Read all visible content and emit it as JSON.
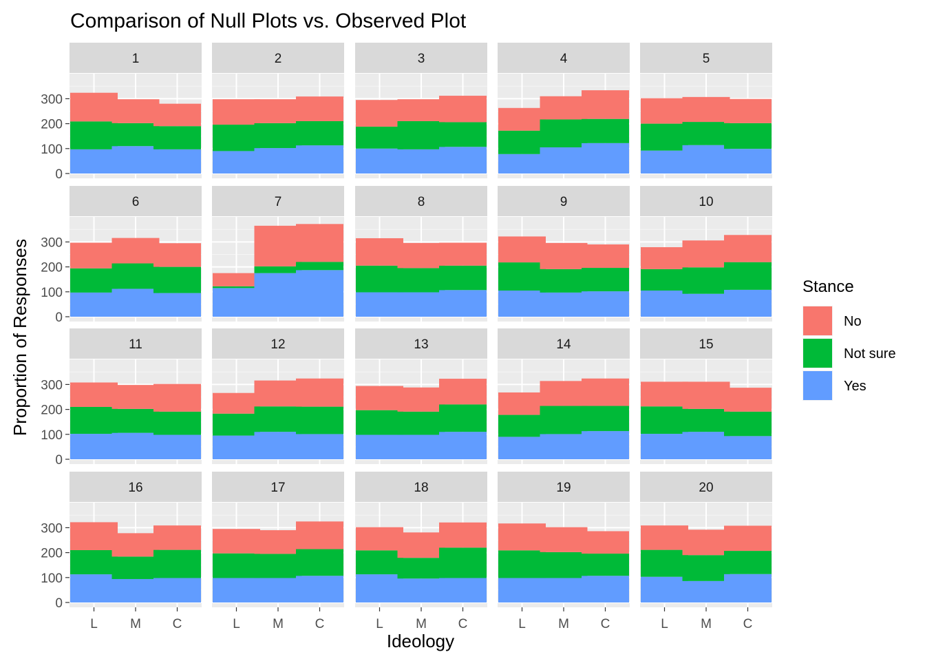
{
  "chart_data": {
    "type": "bar",
    "stacked": true,
    "title": "Comparison of Null Plots vs. Observed Plot",
    "xlabel": "Ideology",
    "ylabel": "Proportion of Responses",
    "categories": [
      "L",
      "M",
      "C"
    ],
    "ylim": [
      0,
      380
    ],
    "yticks": [
      0,
      100,
      200,
      300
    ],
    "grid": true,
    "legend": {
      "title": "Stance",
      "placement": "right",
      "entries": [
        {
          "name": "No",
          "color": "#F8766D"
        },
        {
          "name": "Not sure",
          "color": "#00BA38"
        },
        {
          "name": "Yes",
          "color": "#619CFF"
        }
      ]
    },
    "series_order": [
      "Yes",
      "Not sure",
      "No"
    ],
    "panels": [
      {
        "label": "1",
        "Yes": [
          97,
          110,
          97
        ],
        "Not sure": [
          112,
          92,
          93
        ],
        "No": [
          115,
          96,
          90
        ]
      },
      {
        "label": "2",
        "Yes": [
          90,
          102,
          113
        ],
        "Not sure": [
          106,
          100,
          97
        ],
        "No": [
          102,
          96,
          99
        ]
      },
      {
        "label": "3",
        "Yes": [
          100,
          97,
          107
        ],
        "Not sure": [
          88,
          113,
          99
        ],
        "No": [
          107,
          88,
          106
        ]
      },
      {
        "label": "4",
        "Yes": [
          78,
          105,
          122
        ],
        "Not sure": [
          94,
          112,
          97
        ],
        "No": [
          91,
          93,
          115
        ]
      },
      {
        "label": "5",
        "Yes": [
          92,
          114,
          99
        ],
        "Not sure": [
          108,
          93,
          103
        ],
        "No": [
          102,
          100,
          97
        ]
      },
      {
        "label": "6",
        "Yes": [
          97,
          112,
          95
        ],
        "Not sure": [
          97,
          102,
          105
        ],
        "No": [
          103,
          102,
          95
        ]
      },
      {
        "label": "7",
        "Yes": [
          115,
          175,
          187
        ],
        "Not sure": [
          7,
          27,
          33
        ],
        "No": [
          53,
          163,
          152
        ]
      },
      {
        "label": "8",
        "Yes": [
          98,
          98,
          107
        ],
        "Not sure": [
          107,
          97,
          98
        ],
        "No": [
          110,
          101,
          92
        ]
      },
      {
        "label": "9",
        "Yes": [
          105,
          97,
          102
        ],
        "Not sure": [
          113,
          94,
          94
        ],
        "No": [
          104,
          105,
          94
        ]
      },
      {
        "label": "10",
        "Yes": [
          105,
          92,
          108
        ],
        "Not sure": [
          86,
          106,
          111
        ],
        "No": [
          88,
          108,
          109
        ]
      },
      {
        "label": "11",
        "Yes": [
          102,
          106,
          98
        ],
        "Not sure": [
          108,
          96,
          93
        ],
        "No": [
          98,
          96,
          111
        ]
      },
      {
        "label": "12",
        "Yes": [
          95,
          110,
          101
        ],
        "Not sure": [
          88,
          102,
          110
        ],
        "No": [
          83,
          104,
          113
        ]
      },
      {
        "label": "13",
        "Yes": [
          98,
          98,
          110
        ],
        "Not sure": [
          99,
          93,
          110
        ],
        "No": [
          97,
          97,
          103
        ]
      },
      {
        "label": "14",
        "Yes": [
          90,
          101,
          113
        ],
        "Not sure": [
          88,
          113,
          101
        ],
        "No": [
          90,
          100,
          110
        ]
      },
      {
        "label": "15",
        "Yes": [
          102,
          110,
          93
        ],
        "Not sure": [
          110,
          92,
          98
        ],
        "No": [
          99,
          109,
          96
        ]
      },
      {
        "label": "16",
        "Yes": [
          113,
          94,
          98
        ],
        "Not sure": [
          97,
          90,
          113
        ],
        "No": [
          112,
          94,
          98
        ]
      },
      {
        "label": "17",
        "Yes": [
          98,
          98,
          107
        ],
        "Not sure": [
          99,
          97,
          107
        ],
        "No": [
          98,
          95,
          111
        ]
      },
      {
        "label": "18",
        "Yes": [
          113,
          96,
          98
        ],
        "Not sure": [
          96,
          83,
          122
        ],
        "No": [
          93,
          102,
          101
        ]
      },
      {
        "label": "19",
        "Yes": [
          98,
          98,
          107
        ],
        "Not sure": [
          111,
          104,
          89
        ],
        "No": [
          108,
          100,
          90
        ]
      },
      {
        "label": "20",
        "Yes": [
          103,
          86,
          114
        ],
        "Not sure": [
          108,
          104,
          93
        ],
        "No": [
          98,
          102,
          101
        ]
      }
    ]
  }
}
